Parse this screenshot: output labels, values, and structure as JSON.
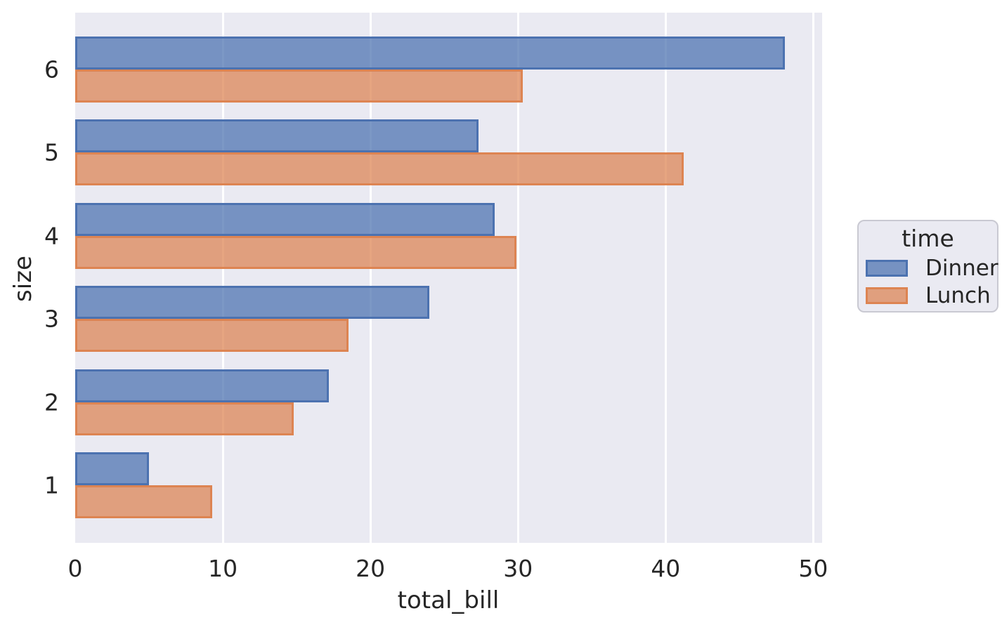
{
  "chart_data": {
    "type": "bar",
    "orientation": "horizontal",
    "xlabel": "total_bill",
    "ylabel": "size",
    "categories": [
      "6",
      "5",
      "4",
      "3",
      "2",
      "1"
    ],
    "series": [
      {
        "name": "Dinner",
        "edge_color": "#4C72B0",
        "fill_color": "rgba(76,114,176,0.73)",
        "values": [
          48.1,
          27.3,
          28.4,
          24.0,
          17.2,
          5.0
        ]
      },
      {
        "name": "Lunch",
        "edge_color": "#DD8452",
        "fill_color": "rgba(221,132,82,0.73)",
        "values": [
          30.3,
          41.2,
          29.9,
          18.5,
          14.8,
          9.3
        ]
      }
    ],
    "xlim": [
      0,
      50.6
    ],
    "xticks": [
      0,
      10,
      20,
      30,
      40,
      50
    ],
    "grid": true,
    "legend": {
      "title": "time",
      "entries": [
        "Dinner",
        "Lunch"
      ],
      "position": "right-outside"
    },
    "style": {
      "figure_bg": "#FFFFFF",
      "axes_bg": "#EAEAF2",
      "grid_color": "#FFFFFF",
      "text_color": "#262626",
      "legend_bg": "#EAEAF2",
      "legend_border": "#C9C9D2"
    }
  }
}
